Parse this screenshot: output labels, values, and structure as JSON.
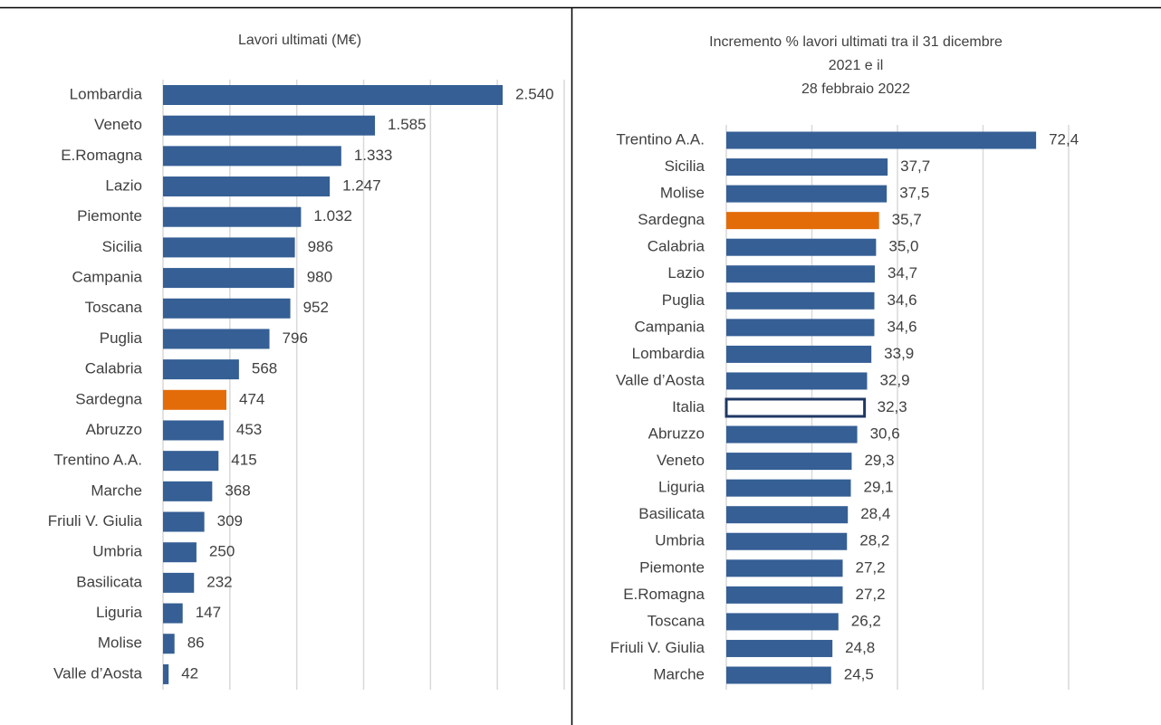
{
  "chart_data": [
    {
      "type": "barh",
      "title": [
        "Lavori ultimati (M€)"
      ],
      "categories": [
        "Lombardia",
        "Veneto",
        "E.Romagna",
        "Lazio",
        "Piemonte",
        "Sicilia",
        "Campania",
        "Toscana",
        "Puglia",
        "Calabria",
        "Sardegna",
        "Abruzzo",
        "Trentino A.A.",
        "Marche",
        "Friuli V. Giulia",
        "Umbria",
        "Basilicata",
        "Liguria",
        "Molise",
        "Valle d’Aosta"
      ],
      "values": [
        2540,
        1585,
        1333,
        1247,
        1032,
        986,
        980,
        952,
        796,
        568,
        474,
        453,
        415,
        368,
        309,
        250,
        232,
        147,
        86,
        42
      ],
      "value_labels": [
        "2.540",
        "1.585",
        "1.333",
        "1.247",
        "1.032",
        "986",
        "980",
        "952",
        "796",
        "568",
        "474",
        "453",
        "415",
        "368",
        "309",
        "250",
        "232",
        "147",
        "86",
        "42"
      ],
      "bar_colors": [
        "#355f95",
        "#355f95",
        "#355f95",
        "#355f95",
        "#355f95",
        "#355f95",
        "#355f95",
        "#355f95",
        "#355f95",
        "#355f95",
        "#e36c09",
        "#355f95",
        "#355f95",
        "#355f95",
        "#355f95",
        "#355f95",
        "#355f95",
        "#355f95",
        "#355f95",
        "#355f95"
      ],
      "bar_edges": [
        null,
        null,
        null,
        null,
        null,
        null,
        null,
        null,
        null,
        null,
        null,
        null,
        null,
        null,
        null,
        null,
        null,
        null,
        null,
        null
      ],
      "xlim": [
        0,
        3000
      ],
      "xticks": [
        0,
        500,
        1000,
        1500,
        2000,
        2500,
        3000
      ],
      "grid": true
    },
    {
      "type": "barh",
      "title": [
        "Incremento % lavori ultimati  tra il  31 dicembre",
        "2021 e il",
        "28 febbraio  2022"
      ],
      "categories": [
        "Trentino A.A.",
        "Sicilia",
        "Molise",
        "Sardegna",
        "Calabria",
        "Lazio",
        "Puglia",
        "Campania",
        "Lombardia",
        "Valle d’Aosta",
        "Italia",
        "Abruzzo",
        "Veneto",
        "Liguria",
        "Basilicata",
        "Umbria",
        "Piemonte",
        "E.Romagna",
        "Toscana",
        "Friuli V. Giulia",
        "Marche"
      ],
      "values": [
        72.4,
        37.7,
        37.5,
        35.7,
        35.0,
        34.7,
        34.6,
        34.6,
        33.9,
        32.9,
        32.3,
        30.6,
        29.3,
        29.1,
        28.4,
        28.2,
        27.2,
        27.2,
        26.2,
        24.8,
        24.5
      ],
      "value_labels": [
        "72,4",
        "37,7",
        "37,5",
        "35,7",
        "35,0",
        "34,7",
        "34,6",
        "34,6",
        "33,9",
        "32,9",
        "32,3",
        "30,6",
        "29,3",
        "29,1",
        "28,4",
        "28,2",
        "27,2",
        "27,2",
        "26,2",
        "24,8",
        "24,5"
      ],
      "bar_colors": [
        "#355f95",
        "#355f95",
        "#355f95",
        "#e36c09",
        "#355f95",
        "#355f95",
        "#355f95",
        "#355f95",
        "#355f95",
        "#355f95",
        "#ffffff",
        "#355f95",
        "#355f95",
        "#355f95",
        "#355f95",
        "#355f95",
        "#355f95",
        "#355f95",
        "#355f95",
        "#355f95",
        "#355f95"
      ],
      "bar_edges": [
        null,
        null,
        null,
        null,
        null,
        null,
        null,
        null,
        null,
        null,
        "#1f3864",
        null,
        null,
        null,
        null,
        null,
        null,
        null,
        null,
        null,
        null
      ],
      "xlim": [
        0,
        80
      ],
      "xticks": [
        0,
        20,
        40,
        60,
        80
      ],
      "grid": true
    }
  ]
}
